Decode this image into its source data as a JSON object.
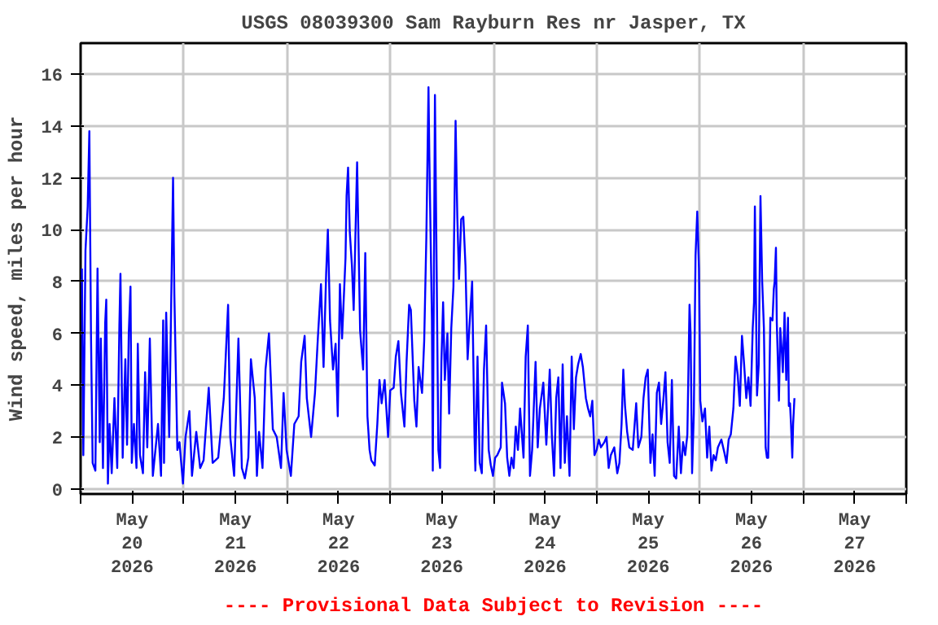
{
  "chart_data": {
    "type": "line",
    "title": "USGS 08039300 Sam Rayburn Res nr Jasper, TX",
    "ylabel": "Wind speed, miles per hour",
    "annotations": [
      "---- Provisional Data Subject to Revision ----"
    ],
    "x": [
      "2026-05-20T00:18",
      "2026-05-20T00:38",
      "2026-05-20T01:08",
      "2026-05-20T01:39",
      "2026-05-20T02:02",
      "2026-05-20T02:25",
      "2026-05-20T02:48",
      "2026-05-20T03:26",
      "2026-05-20T03:56",
      "2026-05-20T04:27",
      "2026-05-20T04:42",
      "2026-05-20T05:12",
      "2026-05-20T05:43",
      "2026-05-20T05:58",
      "2026-05-20T06:21",
      "2026-05-20T06:44",
      "2026-05-20T07:14",
      "2026-05-20T07:52",
      "2026-05-20T08:31",
      "2026-05-20T09:01",
      "2026-05-20T09:16",
      "2026-05-20T09:47",
      "2026-05-20T10:24",
      "2026-05-20T10:48",
      "2026-05-20T11:12",
      "2026-05-20T11:36",
      "2026-05-20T11:54",
      "2026-05-20T12:24",
      "2026-05-20T13:00",
      "2026-05-20T13:18",
      "2026-05-20T13:48",
      "2026-05-20T14:30",
      "2026-05-20T15:00",
      "2026-05-20T15:30",
      "2026-05-20T16:06",
      "2026-05-20T16:48",
      "2026-05-20T17:24",
      "2026-05-20T18:00",
      "2026-05-20T18:42",
      "2026-05-20T19:12",
      "2026-05-20T19:24",
      "2026-05-20T19:54",
      "2026-05-20T20:36",
      "2026-05-20T21:30",
      "2026-05-20T21:48",
      "2026-05-20T22:30",
      "2026-05-20T23:00",
      "2026-05-20T23:48",
      "2026-05-21T00:24",
      "2026-05-21T01:18",
      "2026-05-21T01:54",
      "2026-05-21T02:54",
      "2026-05-21T03:48",
      "2026-05-21T04:36",
      "2026-05-21T05:48",
      "2026-05-21T06:42",
      "2026-05-21T08:00",
      "2026-05-21T09:18",
      "2026-05-21T10:18",
      "2026-05-21T10:48",
      "2026-05-21T11:42",
      "2026-05-21T12:42",
      "2026-05-21T13:30",
      "2026-05-21T14:12",
      "2026-05-21T15:00",
      "2026-05-21T15:36",
      "2026-05-21T16:30",
      "2026-05-21T17:00",
      "2026-05-21T17:30",
      "2026-05-21T18:18",
      "2026-05-21T19:00",
      "2026-05-21T19:48",
      "2026-05-21T20:42",
      "2026-05-21T21:36",
      "2026-05-21T22:36",
      "2026-05-21T23:12",
      "2026-05-21T23:54",
      "2026-05-22T00:54",
      "2026-05-22T01:42",
      "2026-05-22T02:42",
      "2026-05-22T03:18",
      "2026-05-22T04:06",
      "2026-05-22T04:36",
      "2026-05-22T05:36",
      "2026-05-22T06:30",
      "2026-05-22T07:12",
      "2026-05-22T07:54",
      "2026-05-22T08:30",
      "2026-05-22T09:06",
      "2026-05-22T09:30",
      "2026-05-22T10:00",
      "2026-05-22T10:42",
      "2026-05-22T11:18",
      "2026-05-22T11:48",
      "2026-05-22T12:18",
      "2026-05-22T12:48",
      "2026-05-22T13:36",
      "2026-05-22T13:51",
      "2026-05-22T14:12",
      "2026-05-22T14:36",
      "2026-05-22T15:06",
      "2026-05-22T15:30",
      "2026-05-22T15:54",
      "2026-05-22T16:18",
      "2026-05-22T17:00",
      "2026-05-22T17:42",
      "2026-05-22T18:12",
      "2026-05-22T18:42",
      "2026-05-22T19:12",
      "2026-05-22T19:36",
      "2026-05-22T20:24",
      "2026-05-22T21:00",
      "2026-05-22T21:30",
      "2026-05-22T22:00",
      "2026-05-22T22:42",
      "2026-05-22T23:30",
      "2026-05-23T00:00",
      "2026-05-23T00:48",
      "2026-05-23T01:18",
      "2026-05-23T01:54",
      "2026-05-23T02:30",
      "2026-05-23T03:18",
      "2026-05-23T03:48",
      "2026-05-23T04:24",
      "2026-05-23T04:48",
      "2026-05-23T05:36",
      "2026-05-23T06:06",
      "2026-05-23T06:36",
      "2026-05-23T07:24",
      "2026-05-23T07:54",
      "2026-05-23T08:24",
      "2026-05-23T08:54",
      "2026-05-23T09:06",
      "2026-05-23T09:42",
      "2026-05-23T09:54",
      "2026-05-23T10:24",
      "2026-05-23T10:48",
      "2026-05-23T11:12",
      "2026-05-23T11:36",
      "2026-05-23T11:54",
      "2026-05-23T12:18",
      "2026-05-23T12:42",
      "2026-05-23T13:18",
      "2026-05-23T13:42",
      "2026-05-23T14:12",
      "2026-05-23T14:42",
      "2026-05-23T15:12",
      "2026-05-23T15:36",
      "2026-05-23T16:00",
      "2026-05-23T16:30",
      "2026-05-23T17:00",
      "2026-05-23T17:30",
      "2026-05-23T18:00",
      "2026-05-23T18:24",
      "2026-05-23T19:03",
      "2026-05-23T19:36",
      "2026-05-23T19:48",
      "2026-05-23T20:18",
      "2026-05-23T20:48",
      "2026-05-23T21:18",
      "2026-05-23T21:48",
      "2026-05-23T22:18",
      "2026-05-23T22:54",
      "2026-05-23T23:24",
      "2026-05-23T23:54",
      "2026-05-24T00:24",
      "2026-05-24T00:54",
      "2026-05-24T01:42",
      "2026-05-24T02:00",
      "2026-05-24T02:42",
      "2026-05-24T03:12",
      "2026-05-24T03:42",
      "2026-05-24T04:12",
      "2026-05-24T04:42",
      "2026-05-24T05:12",
      "2026-05-24T05:42",
      "2026-05-24T06:12",
      "2026-05-24T07:00",
      "2026-05-24T07:30",
      "2026-05-24T08:00",
      "2026-05-24T08:30",
      "2026-05-24T09:00",
      "2026-05-24T09:48",
      "2026-05-24T10:18",
      "2026-05-24T10:48",
      "2026-05-24T11:36",
      "2026-05-24T12:18",
      "2026-05-24T13:06",
      "2026-05-24T13:36",
      "2026-05-24T14:06",
      "2026-05-24T14:36",
      "2026-05-24T15:06",
      "2026-05-24T15:36",
      "2026-05-24T16:06",
      "2026-05-24T16:36",
      "2026-05-24T17:06",
      "2026-05-24T17:42",
      "2026-05-24T18:12",
      "2026-05-24T18:42",
      "2026-05-24T19:12",
      "2026-05-24T19:42",
      "2026-05-24T20:18",
      "2026-05-24T20:48",
      "2026-05-24T21:30",
      "2026-05-24T22:00",
      "2026-05-24T22:30",
      "2026-05-24T23:00",
      "2026-05-24T23:30",
      "2026-05-25T00:00",
      "2026-05-25T00:30",
      "2026-05-25T01:00",
      "2026-05-25T01:48",
      "2026-05-25T02:18",
      "2026-05-25T02:48",
      "2026-05-25T03:18",
      "2026-05-25T04:06",
      "2026-05-25T04:48",
      "2026-05-25T05:18",
      "2026-05-25T05:48",
      "2026-05-25T06:12",
      "2026-05-25T06:36",
      "2026-05-25T07:06",
      "2026-05-25T07:36",
      "2026-05-25T08:24",
      "2026-05-25T09:12",
      "2026-05-25T09:42",
      "2026-05-25T10:24",
      "2026-05-25T10:54",
      "2026-05-25T11:24",
      "2026-05-25T11:54",
      "2026-05-25T12:30",
      "2026-05-25T13:00",
      "2026-05-25T13:30",
      "2026-05-25T14:00",
      "2026-05-25T14:30",
      "2026-05-25T15:00",
      "2026-05-25T15:30",
      "2026-05-25T16:00",
      "2026-05-25T16:30",
      "2026-05-25T17:00",
      "2026-05-25T17:30",
      "2026-05-25T18:00",
      "2026-05-25T18:30",
      "2026-05-25T19:06",
      "2026-05-25T19:36",
      "2026-05-25T20:06",
      "2026-05-25T20:36",
      "2026-05-25T21:06",
      "2026-05-25T21:36",
      "2026-05-25T21:51",
      "2026-05-25T22:12",
      "2026-05-25T22:36",
      "2026-05-25T23:00",
      "2026-05-25T23:24",
      "2026-05-25T23:48",
      "2026-05-26T00:06",
      "2026-05-26T00:36",
      "2026-05-26T01:12",
      "2026-05-26T01:42",
      "2026-05-26T02:12",
      "2026-05-26T02:42",
      "2026-05-26T03:12",
      "2026-05-26T03:42",
      "2026-05-26T04:12",
      "2026-05-26T05:00",
      "2026-05-26T05:42",
      "2026-05-26T06:12",
      "2026-05-26T06:42",
      "2026-05-26T07:12",
      "2026-05-26T07:48",
      "2026-05-26T08:18",
      "2026-05-26T08:48",
      "2026-05-26T09:18",
      "2026-05-26T09:48",
      "2026-05-26T10:18",
      "2026-05-26T10:48",
      "2026-05-26T11:18",
      "2026-05-26T11:48",
      "2026-05-26T12:18",
      "2026-05-26T12:36",
      "2026-05-26T12:48",
      "2026-05-26T13:18",
      "2026-05-26T13:42",
      "2026-05-26T14:06",
      "2026-05-26T14:30",
      "2026-05-26T14:54",
      "2026-05-26T15:18",
      "2026-05-26T15:36",
      "2026-05-26T15:54",
      "2026-05-26T16:24",
      "2026-05-26T16:54",
      "2026-05-26T17:12",
      "2026-05-26T17:24",
      "2026-05-26T17:42",
      "2026-05-26T17:54",
      "2026-05-26T18:12",
      "2026-05-26T18:24",
      "2026-05-26T18:42",
      "2026-05-26T19:06",
      "2026-05-26T19:18",
      "2026-05-26T19:42",
      "2026-05-26T20:06",
      "2026-05-26T20:30",
      "2026-05-26T20:42",
      "2026-05-26T20:58",
      "2026-05-26T21:12",
      "2026-05-26T21:30",
      "2026-05-26T21:42",
      "2026-05-26T22:00"
    ],
    "series": [
      {
        "color": "#0000ff",
        "values": [
          8.5,
          1.3,
          9.2,
          10.9,
          13.8,
          5.9,
          1.0,
          0.7,
          8.5,
          1.8,
          5.8,
          0.8,
          6.4,
          7.3,
          0.2,
          2.5,
          0.6,
          3.5,
          0.8,
          6.3,
          8.3,
          1.2,
          5.0,
          1.7,
          6.0,
          7.8,
          1.0,
          2.5,
          0.8,
          5.6,
          1.3,
          0.6,
          4.5,
          1.6,
          5.8,
          0.5,
          1.5,
          2.5,
          0.5,
          6.5,
          1.0,
          6.8,
          2.0,
          12.0,
          7.5,
          1.5,
          1.8,
          0.2,
          2.0,
          3.0,
          0.5,
          2.2,
          0.8,
          1.1,
          3.9,
          1.0,
          1.2,
          3.5,
          7.1,
          2.0,
          0.5,
          5.8,
          0.8,
          0.4,
          1.2,
          5.0,
          3.5,
          0.5,
          2.2,
          0.8,
          4.6,
          6.0,
          2.3,
          2.0,
          0.8,
          3.7,
          1.5,
          0.5,
          2.5,
          2.8,
          4.9,
          5.9,
          3.5,
          2.0,
          3.7,
          5.9,
          7.9,
          4.7,
          8.3,
          10.0,
          6.5,
          4.6,
          5.6,
          2.8,
          7.9,
          5.8,
          8.9,
          11.3,
          12.4,
          9.9,
          8.6,
          6.9,
          9.7,
          12.6,
          6.1,
          4.6,
          9.1,
          2.8,
          1.5,
          1.1,
          0.9,
          2.5,
          4.2,
          3.3,
          4.2,
          2.0,
          3.8,
          3.9,
          5.1,
          5.7,
          3.7,
          2.4,
          4.9,
          7.1,
          6.9,
          3.4,
          2.4,
          4.7,
          3.7,
          5.7,
          9.7,
          15.5,
          12.8,
          6.5,
          0.7,
          15.2,
          8.4,
          1.5,
          0.8,
          4.9,
          7.2,
          4.2,
          6.0,
          2.9,
          6.2,
          7.8,
          14.2,
          10.5,
          8.1,
          10.4,
          10.5,
          8.6,
          5.0,
          6.2,
          8.0,
          2.0,
          0.7,
          5.1,
          1.0,
          0.6,
          4.6,
          6.3,
          1.5,
          0.9,
          0.5,
          1.2,
          1.3,
          1.6,
          4.1,
          3.3,
          1.2,
          0.5,
          1.2,
          0.8,
          2.4,
          1.5,
          3.1,
          1.2,
          5.1,
          6.3,
          0.5,
          1.5,
          4.9,
          1.6,
          3.1,
          4.1,
          1.7,
          4.6,
          2.0,
          0.5,
          3.5,
          4.3,
          0.8,
          4.8,
          1.0,
          2.8,
          0.5,
          5.1,
          2.3,
          4.3,
          4.8,
          5.2,
          4.7,
          3.5,
          3.1,
          2.8,
          3.4,
          1.3,
          1.5,
          1.9,
          1.6,
          1.8,
          2.0,
          0.8,
          1.3,
          1.6,
          0.6,
          1.0,
          2.5,
          4.6,
          3.2,
          2.2,
          1.6,
          1.5,
          3.3,
          1.6,
          2.0,
          3.5,
          4.3,
          4.6,
          1.0,
          2.1,
          0.5,
          3.7,
          4.1,
          2.5,
          3.4,
          4.5,
          1.8,
          1.0,
          4.2,
          0.5,
          0.4,
          2.4,
          0.6,
          1.8,
          1.3,
          2.1,
          7.1,
          6.0,
          0.6,
          2.9,
          9.0,
          10.7,
          8.5,
          3.4,
          2.6,
          3.1,
          1.2,
          2.4,
          0.7,
          1.3,
          1.1,
          1.6,
          1.9,
          1.4,
          1.0,
          1.9,
          2.1,
          3.1,
          5.1,
          4.4,
          3.2,
          5.9,
          4.8,
          3.5,
          4.3,
          3.2,
          6.2,
          7.2,
          10.9,
          3.6,
          4.8,
          11.3,
          8.0,
          6.2,
          1.6,
          1.2,
          1.2,
          6.6,
          6.5,
          7.7,
          8.0,
          9.3,
          6.4,
          4.6,
          3.4,
          6.2,
          5.2,
          4.5,
          6.8,
          4.2,
          6.6,
          3.2,
          3.3,
          2.5,
          1.2,
          2.5,
          3.5
        ]
      }
    ],
    "xlim": [
      "2026-05-20T00:00",
      "2026-05-28T00:00"
    ],
    "xticks": [
      {
        "value": "2026-05-20T00:00",
        "label": null
      },
      {
        "value": "2026-05-20T12:00",
        "label": "May\n20\n2026"
      },
      {
        "value": "2026-05-21T00:00",
        "label": null
      },
      {
        "value": "2026-05-21T12:00",
        "label": "May\n21\n2026"
      },
      {
        "value": "2026-05-22T00:00",
        "label": null
      },
      {
        "value": "2026-05-22T12:00",
        "label": "May\n22\n2026"
      },
      {
        "value": "2026-05-23T00:00",
        "label": null
      },
      {
        "value": "2026-05-23T12:00",
        "label": "May\n23\n2026"
      },
      {
        "value": "2026-05-24T00:00",
        "label": null
      },
      {
        "value": "2026-05-24T12:00",
        "label": "May\n24\n2026"
      },
      {
        "value": "2026-05-25T00:00",
        "label": null
      },
      {
        "value": "2026-05-25T12:00",
        "label": "May\n25\n2026"
      },
      {
        "value": "2026-05-26T00:00",
        "label": null
      },
      {
        "value": "2026-05-26T12:00",
        "label": "May\n26\n2026"
      },
      {
        "value": "2026-05-27T00:00",
        "label": null
      },
      {
        "value": "2026-05-27T12:00",
        "label": "May\n27\n2026"
      },
      {
        "value": "2026-05-28T00:00",
        "label": null
      }
    ],
    "ylim": [
      -0.2,
      17.2
    ],
    "yticks": [
      0,
      2,
      4,
      6,
      8,
      10,
      12,
      14,
      16
    ],
    "grid": true
  }
}
